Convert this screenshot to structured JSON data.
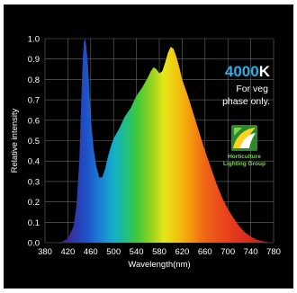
{
  "chart_data": {
    "type": "area",
    "title": "",
    "xlabel": "Wavelength(nm)",
    "ylabel": "Relative intensity",
    "xlim": [
      380,
      780
    ],
    "ylim": [
      0,
      1.0
    ],
    "x_ticks": [
      380,
      420,
      460,
      500,
      540,
      580,
      620,
      660,
      700,
      740,
      780
    ],
    "y_ticks": [
      0.0,
      0.1,
      0.2,
      0.3,
      0.4,
      0.5,
      0.6,
      0.7,
      0.8,
      0.9,
      1.0
    ],
    "grid": true,
    "series": [
      {
        "x": [
          380,
          400,
          410,
          420,
          430,
          435,
          440,
          443,
          446,
          448,
          450,
          452,
          455,
          460,
          465,
          470,
          475,
          480,
          485,
          490,
          495,
          500,
          510,
          520,
          530,
          540,
          550,
          560,
          565,
          570,
          575,
          580,
          585,
          590,
          595,
          600,
          605,
          610,
          615,
          620,
          630,
          640,
          650,
          660,
          670,
          680,
          690,
          700,
          710,
          720,
          730,
          740,
          750,
          760,
          770,
          780
        ],
        "y": [
          0.0,
          0.0,
          0.005,
          0.02,
          0.08,
          0.18,
          0.4,
          0.65,
          0.9,
          0.98,
          1.0,
          0.97,
          0.88,
          0.62,
          0.46,
          0.37,
          0.32,
          0.32,
          0.36,
          0.42,
          0.47,
          0.51,
          0.56,
          0.62,
          0.66,
          0.72,
          0.76,
          0.81,
          0.84,
          0.86,
          0.85,
          0.83,
          0.84,
          0.88,
          0.93,
          0.96,
          0.95,
          0.91,
          0.86,
          0.8,
          0.72,
          0.63,
          0.54,
          0.45,
          0.37,
          0.29,
          0.22,
          0.165,
          0.12,
          0.08,
          0.05,
          0.03,
          0.015,
          0.008,
          0.003,
          0.0
        ]
      }
    ]
  },
  "annotation": {
    "cct_value": "4000",
    "cct_unit": "K",
    "note_line1": "For veg",
    "note_line2": "phase only."
  },
  "logo": {
    "line1": "Horticulture",
    "line2": "Lighting Group",
    "color": "#7fd35a"
  },
  "colors": {
    "background": "#000000",
    "grid": "#6a6a6a",
    "accent": "#2ab0e6"
  }
}
